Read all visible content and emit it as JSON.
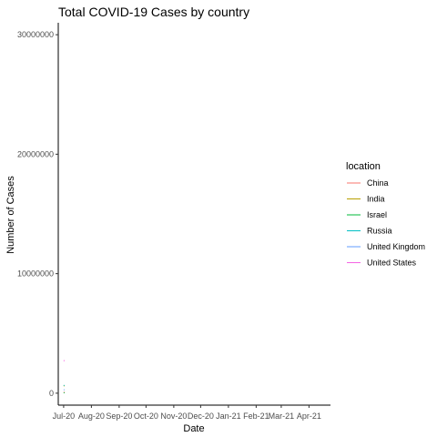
{
  "colors": {
    "axis": "#000000",
    "tick_label": "#4d4d4d",
    "background": "#ffffff"
  },
  "chart_data": {
    "type": "line",
    "title": "Total COVID-19 Cases by country",
    "xlabel": "Date",
    "ylabel": "Number of Cases",
    "x_ticks": [
      "Jul-20",
      "Aug-20",
      "Sep-20",
      "Oct-20",
      "Nov-20",
      "Dec-20",
      "Jan-21",
      "Feb-21",
      "Mar-21",
      "Apr-21"
    ],
    "y_ticks": [
      0,
      10000000,
      20000000,
      30000000
    ],
    "y_tick_labels": [
      "0",
      "10000000",
      "20000000",
      "30000000"
    ],
    "ylim": [
      -1000000,
      31000000
    ],
    "xlim": [
      "2020-06-25",
      "2021-04-25"
    ],
    "grid": false,
    "legend": {
      "title": "location",
      "position": "right"
    },
    "series": [
      {
        "name": "China",
        "color": "#F8766D",
        "x": [
          "2020-07-01",
          "2020-07-02"
        ],
        "values": [
          85000,
          85100
        ]
      },
      {
        "name": "India",
        "color": "#B79F00",
        "x": [
          "2020-07-01",
          "2020-07-02"
        ],
        "values": [
          600000,
          625000
        ]
      },
      {
        "name": "Israel",
        "color": "#00BA38",
        "x": [
          "2020-07-01",
          "2020-07-02"
        ],
        "values": [
          25000,
          26000
        ]
      },
      {
        "name": "Russia",
        "color": "#00BFC4",
        "x": [
          "2020-07-01",
          "2020-07-02"
        ],
        "values": [
          650000,
          660000
        ]
      },
      {
        "name": "United Kingdom",
        "color": "#619CFF",
        "x": [
          "2020-07-01",
          "2020-07-02"
        ],
        "values": [
          285000,
          286000
        ]
      },
      {
        "name": "United States",
        "color": "#F564E3",
        "x": [
          "2020-07-01",
          "2020-07-02"
        ],
        "values": [
          2700000,
          2750000
        ]
      }
    ]
  }
}
